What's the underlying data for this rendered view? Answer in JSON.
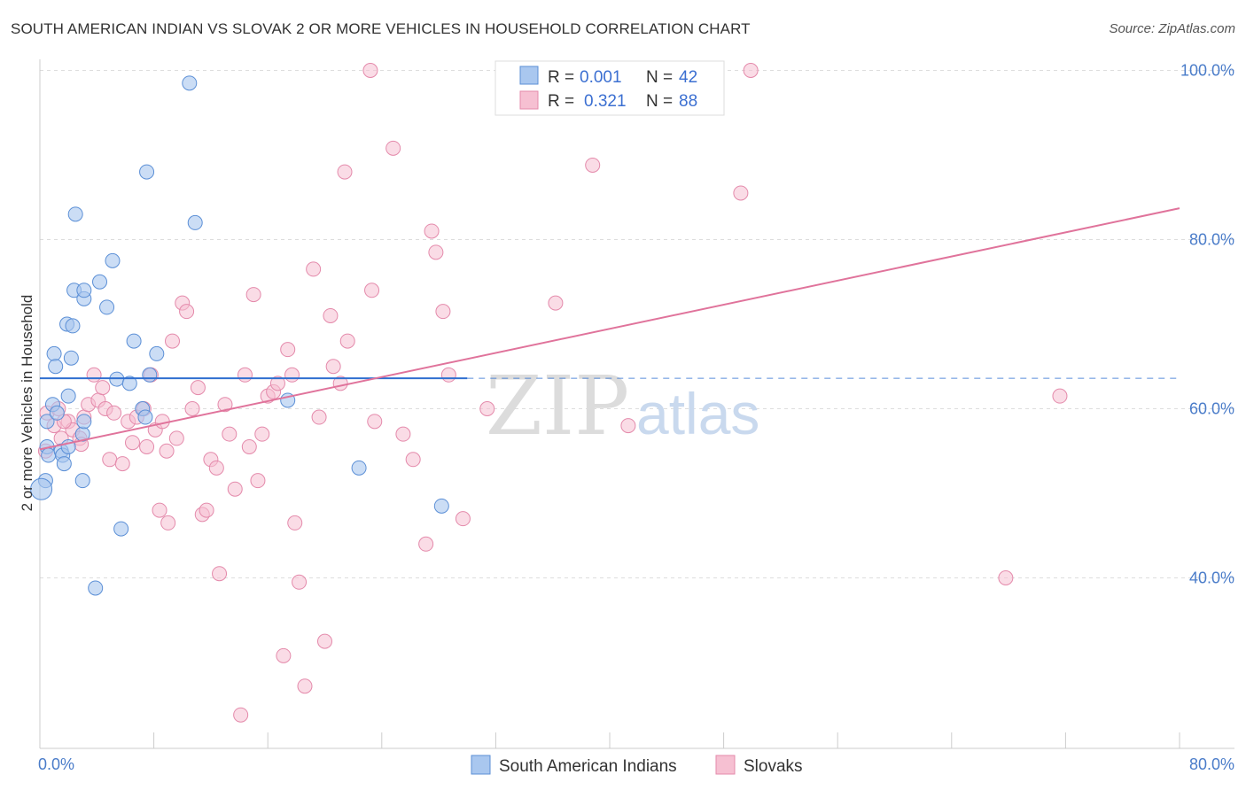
{
  "title": "SOUTH AMERICAN INDIAN VS SLOVAK 2 OR MORE VEHICLES IN HOUSEHOLD CORRELATION CHART",
  "source": "Source: ZipAtlas.com",
  "watermark": {
    "zip": "ZIP",
    "atlas": "atlas"
  },
  "legend": {
    "rows": [
      {
        "r_label": "R =",
        "r_value": "0.001",
        "n_label": "N =",
        "n_value": "42"
      },
      {
        "r_label": "R =",
        "r_value": "0.321",
        "n_label": "N =",
        "n_value": "88"
      }
    ]
  },
  "bottom_legend": [
    "South American Indians",
    "Slovaks"
  ],
  "colors": {
    "blue_fill": "#a9c7ef",
    "blue_stroke": "#5b8fd6",
    "blue_line": "#2f6fd0",
    "pink_fill": "#f6c0d2",
    "pink_stroke": "#e48aab",
    "pink_line": "#e0739b",
    "grid": "#dddddd",
    "axis_text": "#4a7cc9"
  },
  "chart_data": {
    "type": "scatter",
    "title": "SOUTH AMERICAN INDIAN VS SLOVAK 2 OR MORE VEHICLES IN HOUSEHOLD CORRELATION CHART",
    "xlabel": "",
    "ylabel": "2 or more Vehicles in Household",
    "xlim": [
      0,
      80
    ],
    "ylim": [
      20,
      102
    ],
    "x_tick_labels": [
      "0.0%",
      "80.0%"
    ],
    "y_ticks": [
      40,
      60,
      80,
      100
    ],
    "y_tick_labels": [
      "40.0%",
      "60.0%",
      "80.0%",
      "100.0%"
    ],
    "series": [
      {
        "name": "South American Indians",
        "r": 0.001,
        "n": 42,
        "trend": {
          "x1": 0,
          "y1": 63.6,
          "x2": 30,
          "y2": 63.6,
          "dash_to": 80
        },
        "points": [
          [
            0.4,
            51.5
          ],
          [
            0.5,
            55.5
          ],
          [
            0.5,
            58.5
          ],
          [
            0.9,
            60.5
          ],
          [
            0.6,
            54.5
          ],
          [
            1.0,
            66.5
          ],
          [
            1.1,
            65.0
          ],
          [
            1.2,
            59.5
          ],
          [
            1.5,
            55.0
          ],
          [
            1.6,
            54.5
          ],
          [
            1.7,
            53.5
          ],
          [
            2.0,
            61.5
          ],
          [
            1.9,
            70.0
          ],
          [
            2.3,
            69.8
          ],
          [
            2.2,
            66.0
          ],
          [
            2.4,
            74.0
          ],
          [
            2.5,
            83.0
          ],
          [
            3.1,
            73.0
          ],
          [
            3.1,
            74.0
          ],
          [
            2.0,
            55.5
          ],
          [
            3.0,
            57.0
          ],
          [
            3.1,
            58.5
          ],
          [
            3.0,
            51.5
          ],
          [
            4.2,
            75.0
          ],
          [
            4.7,
            72.0
          ],
          [
            5.1,
            77.5
          ],
          [
            5.4,
            63.5
          ],
          [
            6.3,
            63.0
          ],
          [
            6.6,
            68.0
          ],
          [
            7.2,
            60.0
          ],
          [
            7.4,
            59.0
          ],
          [
            7.5,
            88.0
          ],
          [
            7.7,
            64.0
          ],
          [
            8.2,
            66.5
          ],
          [
            5.7,
            45.8
          ],
          [
            3.9,
            38.8
          ],
          [
            10.5,
            98.5
          ],
          [
            10.9,
            82.0
          ],
          [
            17.4,
            61.0
          ],
          [
            22.4,
            53.0
          ],
          [
            28.2,
            48.5
          ],
          [
            0.1,
            50.5
          ]
        ]
      },
      {
        "name": "Slovaks",
        "r": 0.321,
        "n": 88,
        "trend": {
          "x1": 0,
          "y1": 55.2,
          "x2": 80,
          "y2": 83.7
        },
        "points": [
          [
            0.5,
            59.5
          ],
          [
            1.0,
            58.0
          ],
          [
            1.3,
            60.0
          ],
          [
            1.5,
            56.5
          ],
          [
            2.0,
            58.5
          ],
          [
            2.3,
            57.5
          ],
          [
            2.8,
            56.5
          ],
          [
            3.1,
            59.0
          ],
          [
            3.4,
            60.5
          ],
          [
            3.8,
            64.0
          ],
          [
            4.1,
            61.0
          ],
          [
            4.4,
            62.5
          ],
          [
            4.6,
            60.0
          ],
          [
            4.9,
            54.0
          ],
          [
            5.2,
            59.5
          ],
          [
            5.8,
            53.5
          ],
          [
            6.2,
            58.5
          ],
          [
            6.5,
            56.0
          ],
          [
            6.8,
            59.0
          ],
          [
            7.3,
            60.0
          ],
          [
            7.5,
            55.5
          ],
          [
            7.8,
            64.0
          ],
          [
            8.1,
            57.5
          ],
          [
            8.4,
            48.0
          ],
          [
            8.6,
            58.5
          ],
          [
            8.9,
            55.0
          ],
          [
            9.0,
            46.5
          ],
          [
            9.3,
            68.0
          ],
          [
            9.6,
            56.5
          ],
          [
            10.0,
            72.5
          ],
          [
            10.3,
            71.5
          ],
          [
            10.7,
            60.0
          ],
          [
            11.1,
            62.5
          ],
          [
            11.4,
            47.5
          ],
          [
            11.7,
            48.0
          ],
          [
            12.0,
            54.0
          ],
          [
            12.4,
            53.0
          ],
          [
            12.6,
            40.5
          ],
          [
            13.0,
            60.5
          ],
          [
            13.3,
            57.0
          ],
          [
            13.7,
            50.5
          ],
          [
            14.1,
            23.8
          ],
          [
            14.4,
            64.0
          ],
          [
            14.7,
            55.5
          ],
          [
            15.0,
            73.5
          ],
          [
            15.3,
            51.5
          ],
          [
            15.6,
            57.0
          ],
          [
            16.0,
            61.5
          ],
          [
            16.4,
            62.0
          ],
          [
            16.7,
            63.0
          ],
          [
            17.1,
            30.8
          ],
          [
            17.4,
            67.0
          ],
          [
            17.7,
            64.0
          ],
          [
            17.9,
            46.5
          ],
          [
            18.2,
            39.5
          ],
          [
            18.6,
            27.2
          ],
          [
            19.2,
            76.5
          ],
          [
            19.6,
            59.0
          ],
          [
            20.0,
            32.5
          ],
          [
            20.4,
            71.0
          ],
          [
            20.6,
            65.0
          ],
          [
            21.1,
            63.0
          ],
          [
            21.4,
            88.0
          ],
          [
            21.6,
            68.0
          ],
          [
            23.3,
            74.0
          ],
          [
            23.2,
            100.0
          ],
          [
            23.5,
            58.5
          ],
          [
            24.8,
            90.8
          ],
          [
            25.5,
            57.0
          ],
          [
            26.2,
            54.0
          ],
          [
            27.1,
            44.0
          ],
          [
            27.5,
            81.0
          ],
          [
            27.8,
            78.5
          ],
          [
            28.3,
            71.5
          ],
          [
            28.7,
            64.0
          ],
          [
            29.7,
            47.0
          ],
          [
            31.4,
            60.0
          ],
          [
            36.2,
            72.5
          ],
          [
            38.2,
            100.0
          ],
          [
            38.8,
            88.8
          ],
          [
            41.3,
            58.0
          ],
          [
            49.2,
            85.5
          ],
          [
            49.9,
            100.0
          ],
          [
            67.8,
            40.0
          ],
          [
            71.6,
            61.5
          ],
          [
            0.4,
            55.0
          ],
          [
            1.7,
            58.5
          ],
          [
            2.9,
            55.8
          ]
        ]
      }
    ]
  }
}
